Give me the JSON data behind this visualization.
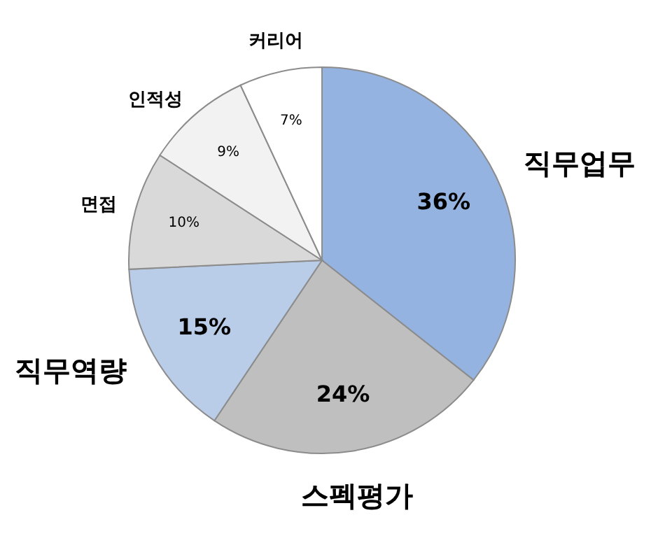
{
  "chart_data": {
    "type": "pie",
    "categories": [
      "직무업무",
      "스펙평가",
      "직무역량",
      "면접",
      "인적성",
      "커리어"
    ],
    "values": [
      36,
      24,
      15,
      10,
      9,
      7
    ],
    "value_labels": [
      "36%",
      "24%",
      "15%",
      "10%",
      "9%",
      "7%"
    ],
    "colors": [
      "#95b3e0",
      "#bfbfbf",
      "#b9cce8",
      "#d9d9d9",
      "#f2f2f2",
      "#ffffff"
    ]
  }
}
